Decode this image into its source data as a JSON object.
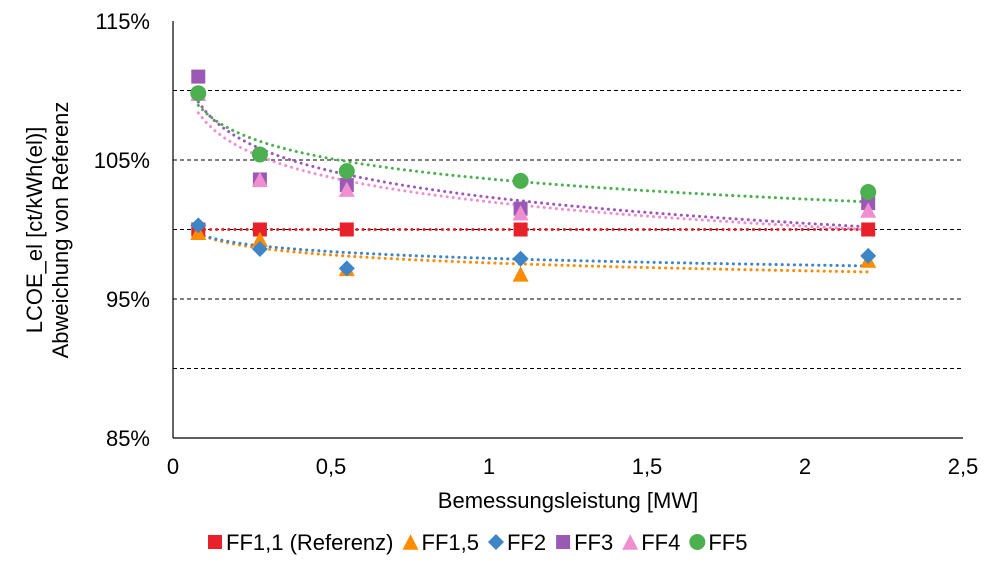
{
  "chart_data": {
    "type": "scatter",
    "title": "",
    "xlabel": "Bemessungsleistung [MW]",
    "ylabel": [
      "LCOE_el [ct/kWh(el)]",
      "Abweichung von Referenz"
    ],
    "xlim": [
      0,
      2.5
    ],
    "ylim": [
      85,
      115
    ],
    "x_ticks": [
      0,
      0.5,
      1,
      1.5,
      2,
      2.5
    ],
    "x_tick_labels": [
      "0",
      "0,5",
      "1",
      "1,5",
      "2",
      "2,5"
    ],
    "y_ticks": [
      85,
      95,
      105,
      115
    ],
    "y_tick_labels": [
      "85%",
      "95%",
      "105%",
      "115%"
    ],
    "gridlines_y": [
      90,
      95,
      100,
      105,
      110
    ],
    "grid": "horizontal dashed",
    "legend_position": "bottom",
    "trendlines": "logarithmic, dotted",
    "series": [
      {
        "name": "FF1,1 (Referenz)",
        "marker": "square",
        "color": "#e8202a",
        "x": [
          0.08,
          0.275,
          0.55,
          1.1,
          2.2
        ],
        "y": [
          100,
          100,
          100,
          100,
          100
        ]
      },
      {
        "name": "FF1,5",
        "marker": "triangle",
        "color": "#ff8c00",
        "x": [
          0.08,
          0.275,
          0.55,
          1.1,
          2.2
        ],
        "y": [
          99.8,
          99.3,
          97.2,
          96.8,
          97.8
        ]
      },
      {
        "name": "FF2",
        "marker": "diamond",
        "color": "#3d85c6",
        "x": [
          0.08,
          0.275,
          0.55,
          1.1,
          2.2
        ],
        "y": [
          100.3,
          98.6,
          97.2,
          97.9,
          98.1
        ]
      },
      {
        "name": "FF3",
        "marker": "square",
        "color": "#9b59b6",
        "x": [
          0.08,
          0.275,
          0.55,
          1.1,
          2.2
        ],
        "y": [
          111.0,
          103.6,
          103.2,
          101.5,
          101.9
        ]
      },
      {
        "name": "FF4",
        "marker": "triangle",
        "color": "#f08fcf",
        "x": [
          0.08,
          0.275,
          0.55,
          1.1,
          2.2
        ],
        "y": [
          109.8,
          103.6,
          102.9,
          101.2,
          101.4
        ]
      },
      {
        "name": "FF5",
        "marker": "circle",
        "color": "#4caf50",
        "x": [
          0.08,
          0.275,
          0.55,
          1.1,
          2.2
        ],
        "y": [
          109.8,
          105.4,
          104.2,
          103.5,
          102.7
        ]
      }
    ]
  }
}
